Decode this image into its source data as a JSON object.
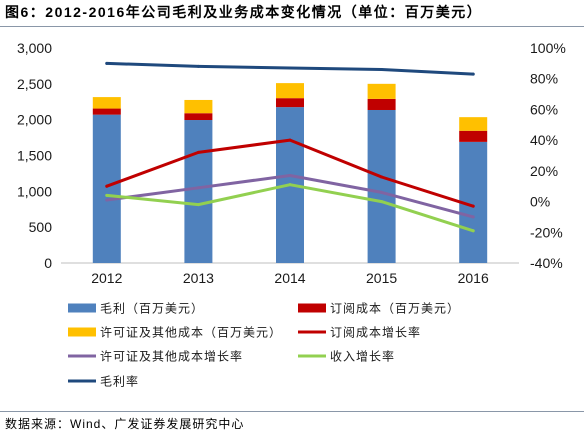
{
  "title": "图6：2012-2016年公司毛利及业务成本变化情况（单位：百万美元）",
  "source": "数据来源：Wind、广发证券发展研究中心",
  "chart_data": {
    "type": "bar",
    "stacked": true,
    "categories": [
      "2012",
      "2013",
      "2014",
      "2015",
      "2016"
    ],
    "series": [
      {
        "name": "毛利（百万美元）",
        "type": "bar",
        "axis": "left",
        "color": "#4F81BD",
        "values": [
          2070,
          1995,
          2175,
          2135,
          1690
        ]
      },
      {
        "name": "订阅成本（百万美元）",
        "type": "bar",
        "axis": "left",
        "color": "#C00000",
        "values": [
          85,
          95,
          125,
          155,
          155
        ]
      },
      {
        "name": "许可证及其他成本（百万美元）",
        "type": "bar",
        "axis": "left",
        "color": "#FFC000",
        "values": [
          160,
          185,
          210,
          210,
          190
        ]
      },
      {
        "name": "订阅成本增长率",
        "type": "line",
        "axis": "right",
        "color": "#C00000",
        "values": [
          10,
          32,
          40,
          16,
          -3
        ]
      },
      {
        "name": "许可证及其他成本增长率",
        "type": "line",
        "axis": "right",
        "color": "#8064A2",
        "values": [
          1,
          9,
          17,
          6,
          -10
        ]
      },
      {
        "name": "收入增长率",
        "type": "line",
        "axis": "right",
        "color": "#92D050",
        "values": [
          4,
          -2,
          11,
          0,
          -19
        ]
      },
      {
        "name": "毛利率",
        "type": "line",
        "axis": "right",
        "color": "#1F497D",
        "values": [
          90,
          88,
          87,
          86,
          83
        ]
      }
    ],
    "left_axis": {
      "min": 0,
      "max": 3000,
      "ticks": [
        0,
        500,
        1000,
        1500,
        2000,
        2500,
        3000
      ],
      "tick_labels": [
        "0",
        "500",
        "1,000",
        "1,500",
        "2,000",
        "2,500",
        "3,000"
      ]
    },
    "right_axis": {
      "min": -40,
      "max": 100,
      "ticks": [
        -40,
        -20,
        0,
        20,
        40,
        60,
        80,
        100
      ],
      "tick_labels": [
        "-40%",
        "-20%",
        "0%",
        "20%",
        "40%",
        "60%",
        "80%",
        "100%"
      ]
    },
    "grid": false,
    "legend": "bottom"
  }
}
